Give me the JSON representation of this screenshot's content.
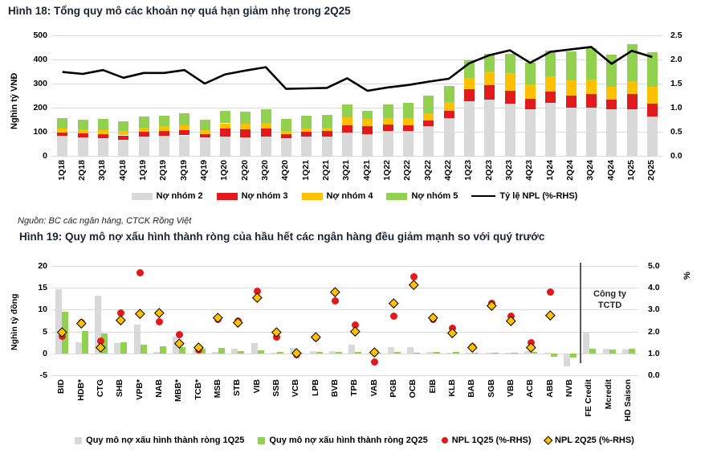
{
  "source": "Nguồn: BC các ngân hàng, CTCK Rồng Việt",
  "colors": {
    "group2_gray": "#d9d9d9",
    "group3_red": "#e2191d",
    "group4_yellow": "#ffc000",
    "group5_green": "#92d050",
    "npl_line_black": "#000000",
    "diamond_fill": "#ffc000",
    "gridline": "#d9d9d9"
  },
  "chart_data": [
    {
      "id": "fig18",
      "type": "stacked-bar+line",
      "title": "Hình 18: Tổng quy mô các khoản nợ quá hạn giảm nhẹ trong 2Q25",
      "ylabel": "Nghìn tỷ VNĐ",
      "y_left": {
        "min": 0,
        "max": 500,
        "step": 100
      },
      "y_right": {
        "min": 0.0,
        "max": 2.5,
        "step": 0.5
      },
      "y_left_ticks": [
        "500",
        "400",
        "300",
        "200",
        "100",
        "0"
      ],
      "y_right_ticks": [
        "2.5",
        "2.0",
        "1.5",
        "1.0",
        "0.5",
        "0.0"
      ],
      "grid": true,
      "legend_position": "bottom",
      "categories": [
        "1Q18",
        "2Q18",
        "3Q18",
        "4Q18",
        "1Q19",
        "2Q19",
        "3Q19",
        "4Q19",
        "1Q20",
        "2Q20",
        "3Q20",
        "4Q20",
        "1Q21",
        "2Q21",
        "3Q21",
        "4Q21",
        "1Q22",
        "2Q22",
        "3Q22",
        "4Q22",
        "1Q23",
        "2Q23",
        "3Q23",
        "4Q23",
        "1Q24",
        "2Q24",
        "3Q24",
        "4Q24",
        "1Q25",
        "2Q25"
      ],
      "series": [
        {
          "name": "Nợ nhóm 2",
          "color": "#d9d9d9",
          "values": [
            82,
            77,
            74,
            68,
            80,
            82,
            85,
            75,
            80,
            77,
            81,
            74,
            80,
            80,
            97,
            90,
            104,
            104,
            122,
            156,
            227,
            233,
            217,
            194,
            219,
            200,
            200,
            194,
            194,
            163
          ]
        },
        {
          "name": "Nợ nhóm 3",
          "color": "#e2191d",
          "values": [
            15,
            17,
            17,
            17,
            19,
            20,
            21,
            16,
            35,
            34,
            33,
            17,
            20,
            22,
            30,
            32,
            26,
            23,
            25,
            32,
            51,
            60,
            52,
            42,
            48,
            50,
            56,
            39,
            64,
            53
          ]
        },
        {
          "name": "Nợ nhóm 4",
          "color": "#ffc000",
          "values": [
            17,
            16,
            17,
            17,
            18,
            20,
            21,
            15,
            20,
            21,
            23,
            11,
            14,
            15,
            33,
            30,
            28,
            31,
            30,
            34,
            44,
            56,
            75,
            61,
            63,
            63,
            60,
            53,
            52,
            70
          ]
        },
        {
          "name": "Nợ nhóm 5",
          "color": "#92d050",
          "values": [
            42,
            41,
            45,
            40,
            48,
            46,
            49,
            45,
            52,
            53,
            56,
            51,
            54,
            53,
            52,
            36,
            57,
            63,
            73,
            69,
            75,
            75,
            78,
            89,
            108,
            120,
            131,
            133,
            153,
            144
          ]
        }
      ],
      "line": {
        "name": "Tỷ lệ NPL (%-RHS)",
        "color": "#000000",
        "axis": "right",
        "values": [
          1.74,
          1.7,
          1.78,
          1.62,
          1.72,
          1.72,
          1.78,
          1.5,
          1.69,
          1.77,
          1.84,
          1.39,
          1.4,
          1.41,
          1.61,
          1.35,
          1.42,
          1.47,
          1.54,
          1.6,
          1.92,
          2.09,
          2.19,
          1.93,
          2.16,
          2.21,
          2.26,
          1.91,
          2.18,
          2.05
        ]
      }
    },
    {
      "id": "fig19",
      "type": "bar+scatter",
      "title": "Hình 19: Quy mô nợ xấu hình thành ròng của hầu hết các ngân hàng đều giảm mạnh so với quý trước",
      "ylabel": "Nghìn tỷ đồng",
      "ylabel_right": "%",
      "y_left": {
        "min": -5,
        "max": 20,
        "step": 5
      },
      "y_right": {
        "min": 0.0,
        "max": 5.0,
        "step": 1.0
      },
      "y_left_ticks": [
        "20",
        "15",
        "10",
        "5",
        "0",
        "-5"
      ],
      "y_right_ticks": [
        "5.0",
        "4.0",
        "3.0",
        "2.0",
        "1.0",
        "0.0"
      ],
      "grid": true,
      "legend_position": "bottom",
      "annotation": {
        "label": "Công ty TCTD",
        "separator_before_category": "FE Credit"
      },
      "categories": [
        "BID",
        "HDB*",
        "CTG",
        "SHB",
        "VPB*",
        "NAB",
        "MBB*",
        "TCB*",
        "MSB",
        "STB",
        "VIB",
        "SSB",
        "VCB",
        "LPB",
        "BVB",
        "TPB",
        "VAB",
        "PGB",
        "OCB",
        "EIB",
        "KLB",
        "BAB",
        "SGB",
        "VBB",
        "ACB",
        "ABB",
        "NVB",
        "FE Credit",
        "Mcredit",
        "HD Saison"
      ],
      "series": [
        {
          "name": "Quy mô nợ xấu hình thành ròng 1Q25",
          "color": "#d9d9d9",
          "values": [
            14.7,
            2.6,
            13.2,
            2.4,
            6.6,
            0.3,
            3.9,
            0.9,
            0.4,
            1.0,
            2.3,
            0.2,
            1.2,
            0.6,
            0.5,
            1.9,
            0.3,
            1.4,
            1.5,
            0.3,
            0.2,
            0.2,
            0.1,
            0.1,
            0.5,
            0.1,
            -2.9,
            4.9,
            1.0,
            0.8
          ]
        },
        {
          "name": "Quy mô nợ xấu hình thành ròng 2Q25",
          "color": "#92d050",
          "values": [
            9.5,
            5.1,
            4.5,
            2.6,
            1.9,
            1.7,
            1.5,
            1.0,
            1.2,
            0.6,
            0.7,
            0.4,
            0.2,
            0.3,
            0.3,
            0.4,
            0.2,
            0.3,
            0.2,
            0.4,
            0.3,
            0.2,
            0.2,
            0.1,
            0.3,
            -0.8,
            -0.9,
            1.1,
            0.8,
            1.0
          ]
        }
      ],
      "points": [
        {
          "name": "NPL 1Q25 (%-RHS)",
          "marker": "circle",
          "color": "#e2191d",
          "axis": "right",
          "values": [
            1.8,
            2.4,
            1.55,
            2.85,
            4.7,
            2.45,
            1.85,
            1.15,
            2.55,
            2.48,
            3.85,
            1.75,
            0.95,
            1.7,
            3.4,
            2.3,
            0.62,
            2.7,
            4.5,
            2.56,
            2.15,
            1.32,
            3.3,
            2.72,
            1.5,
            3.82,
            null,
            null,
            null,
            null
          ]
        },
        {
          "name": "NPL 2Q25 (%-RHS)",
          "marker": "diamond",
          "color": "#ffc000",
          "axis": "right",
          "values": [
            1.95,
            2.35,
            1.26,
            2.52,
            2.8,
            2.85,
            1.45,
            1.28,
            2.64,
            2.4,
            3.55,
            1.95,
            1.0,
            1.76,
            3.8,
            2.0,
            1.05,
            3.3,
            4.15,
            2.62,
            1.92,
            1.25,
            3.16,
            2.46,
            1.28,
            2.75,
            null,
            null,
            null,
            null
          ]
        }
      ]
    }
  ]
}
